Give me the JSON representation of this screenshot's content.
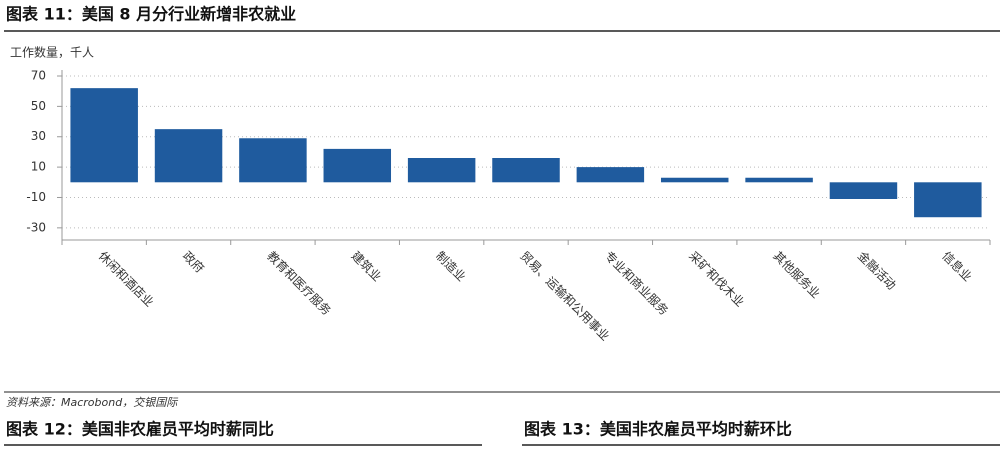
{
  "chart_data": {
    "type": "bar",
    "title": "图表 11：美国 8 月分行业新增非农就业",
    "y_label": "工作数量，千人",
    "categories": [
      "休闲和酒店业",
      "政府",
      "教育和医疗服务",
      "建筑业",
      "制造业",
      "贸易、运输和公用事业",
      "专业和商业服务",
      "采矿和伐木业",
      "其他服务业",
      "金融活动",
      "信息业"
    ],
    "values": [
      62,
      35,
      29,
      22,
      16,
      16,
      10,
      3,
      3,
      -11,
      -23
    ],
    "color": "#1f5b9e",
    "ylim": [
      -38,
      70
    ],
    "yticks": [
      -30,
      -10,
      10,
      30,
      50,
      70
    ],
    "grid": true
  },
  "source": "资料来源：Macrobond，交银国际",
  "next_figures": [
    "图表 12：美国非农雇员平均时薪同比",
    "图表 13：美国非农雇员平均时薪环比"
  ]
}
